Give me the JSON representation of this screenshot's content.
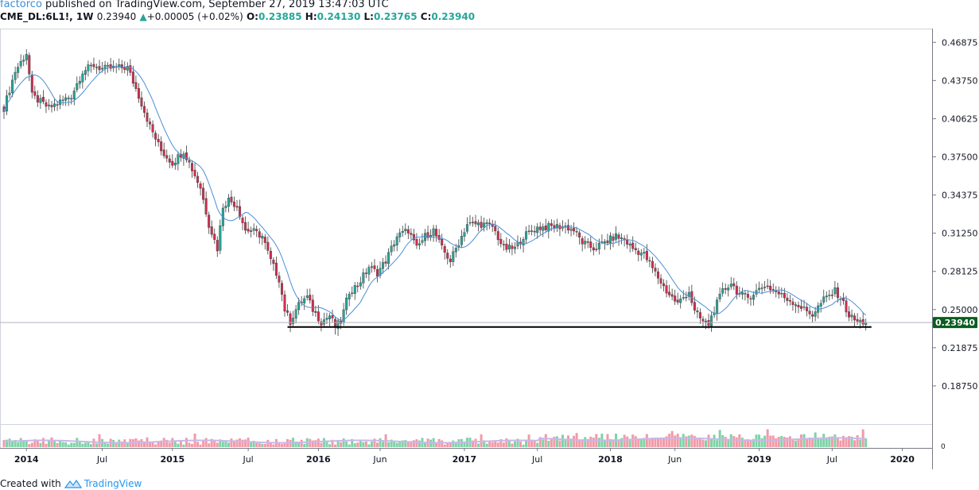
{
  "header": {
    "author": "factorco",
    "published": "published on TradingView.com, September 27, 2019 13:47:03 UTC",
    "symbol": "CME_DL:6L1!, 1W",
    "last": "0.23940",
    "change": "+0.00005 (+0.02%)",
    "open_label": "O:",
    "open": "0.23885",
    "high_label": "H:",
    "high": "0.24130",
    "low_label": "L:",
    "low": "0.23765",
    "close_label": "C:",
    "close": "0.23940"
  },
  "footer": {
    "created_with": "Created with",
    "brand": "TradingView"
  },
  "colors": {
    "up": "#26a69a",
    "down": "#d22d50",
    "ma": "#4a8fd6",
    "support": "#000000",
    "price_tag": "#0a5d1f",
    "axis": "#787b86",
    "vol_up": "#7fd3a7",
    "vol_down": "#f29aa8",
    "vol_ma": "#c9b8e8"
  },
  "chart_data": {
    "type": "candlestick",
    "timeframe": "1W",
    "ylim": [
      0.15625,
      0.48
    ],
    "y_ticks": [
      "0.46875",
      "0.43750",
      "0.40625",
      "0.37500",
      "0.34375",
      "0.31250",
      "0.28125",
      "0.25000",
      "0.21875",
      "0.18750"
    ],
    "y_tick_values": [
      0.46875,
      0.4375,
      0.40625,
      0.375,
      0.34375,
      0.3125,
      0.28125,
      0.25,
      0.21875,
      0.1875
    ],
    "x_ticks": [
      "2014",
      "Jul",
      "2015",
      "Jul",
      "2016",
      "Jun",
      "2017",
      "Jul",
      "2018",
      "Jun",
      "2019",
      "Jul",
      "2020"
    ],
    "x_tick_weeks": [
      8,
      35,
      60,
      87,
      112,
      134,
      164,
      190,
      216,
      239,
      269,
      295,
      320
    ],
    "last_price_label": "0.23940",
    "last_price": 0.2394,
    "support_level": 0.2357,
    "support_from_week": 101,
    "support_to_week": 309,
    "volume_axis_label": "0",
    "close_anchors": [
      [
        0,
        0.415
      ],
      [
        4,
        0.445
      ],
      [
        8,
        0.46
      ],
      [
        10,
        0.425
      ],
      [
        13,
        0.42
      ],
      [
        16,
        0.415
      ],
      [
        20,
        0.42
      ],
      [
        24,
        0.425
      ],
      [
        28,
        0.445
      ],
      [
        32,
        0.45
      ],
      [
        35,
        0.447
      ],
      [
        40,
        0.448
      ],
      [
        44,
        0.448
      ],
      [
        48,
        0.425
      ],
      [
        52,
        0.4
      ],
      [
        56,
        0.38
      ],
      [
        60,
        0.37
      ],
      [
        64,
        0.38
      ],
      [
        67,
        0.365
      ],
      [
        70,
        0.35
      ],
      [
        73,
        0.32
      ],
      [
        76,
        0.3
      ],
      [
        78,
        0.335
      ],
      [
        80,
        0.34
      ],
      [
        83,
        0.335
      ],
      [
        86,
        0.315
      ],
      [
        88,
        0.315
      ],
      [
        92,
        0.31
      ],
      [
        95,
        0.29
      ],
      [
        98,
        0.275
      ],
      [
        100,
        0.25
      ],
      [
        102,
        0.24
      ],
      [
        104,
        0.25
      ],
      [
        106,
        0.257
      ],
      [
        108,
        0.26
      ],
      [
        110,
        0.25
      ],
      [
        113,
        0.24
      ],
      [
        116,
        0.245
      ],
      [
        118,
        0.236
      ],
      [
        120,
        0.24
      ],
      [
        123,
        0.265
      ],
      [
        126,
        0.27
      ],
      [
        130,
        0.285
      ],
      [
        133,
        0.28
      ],
      [
        136,
        0.29
      ],
      [
        140,
        0.31
      ],
      [
        144,
        0.315
      ],
      [
        147,
        0.3
      ],
      [
        150,
        0.31
      ],
      [
        153,
        0.315
      ],
      [
        156,
        0.3
      ],
      [
        159,
        0.29
      ],
      [
        162,
        0.305
      ],
      [
        165,
        0.32
      ],
      [
        170,
        0.32
      ],
      [
        174,
        0.318
      ],
      [
        178,
        0.3
      ],
      [
        182,
        0.3
      ],
      [
        185,
        0.31
      ],
      [
        190,
        0.317
      ],
      [
        195,
        0.318
      ],
      [
        200,
        0.318
      ],
      [
        203,
        0.315
      ],
      [
        206,
        0.305
      ],
      [
        210,
        0.3
      ],
      [
        214,
        0.305
      ],
      [
        218,
        0.31
      ],
      [
        221,
        0.307
      ],
      [
        224,
        0.3
      ],
      [
        228,
        0.295
      ],
      [
        232,
        0.28
      ],
      [
        236,
        0.265
      ],
      [
        240,
        0.255
      ],
      [
        244,
        0.265
      ],
      [
        246,
        0.248
      ],
      [
        249,
        0.24
      ],
      [
        251,
        0.238
      ],
      [
        253,
        0.25
      ],
      [
        256,
        0.265
      ],
      [
        259,
        0.272
      ],
      [
        262,
        0.262
      ],
      [
        265,
        0.26
      ],
      [
        268,
        0.265
      ],
      [
        271,
        0.27
      ],
      [
        274,
        0.266
      ],
      [
        278,
        0.26
      ],
      [
        282,
        0.255
      ],
      [
        285,
        0.25
      ],
      [
        288,
        0.246
      ],
      [
        292,
        0.258
      ],
      [
        296,
        0.265
      ],
      [
        298,
        0.26
      ],
      [
        301,
        0.245
      ],
      [
        304,
        0.24
      ],
      [
        307,
        0.2394
      ]
    ]
  }
}
